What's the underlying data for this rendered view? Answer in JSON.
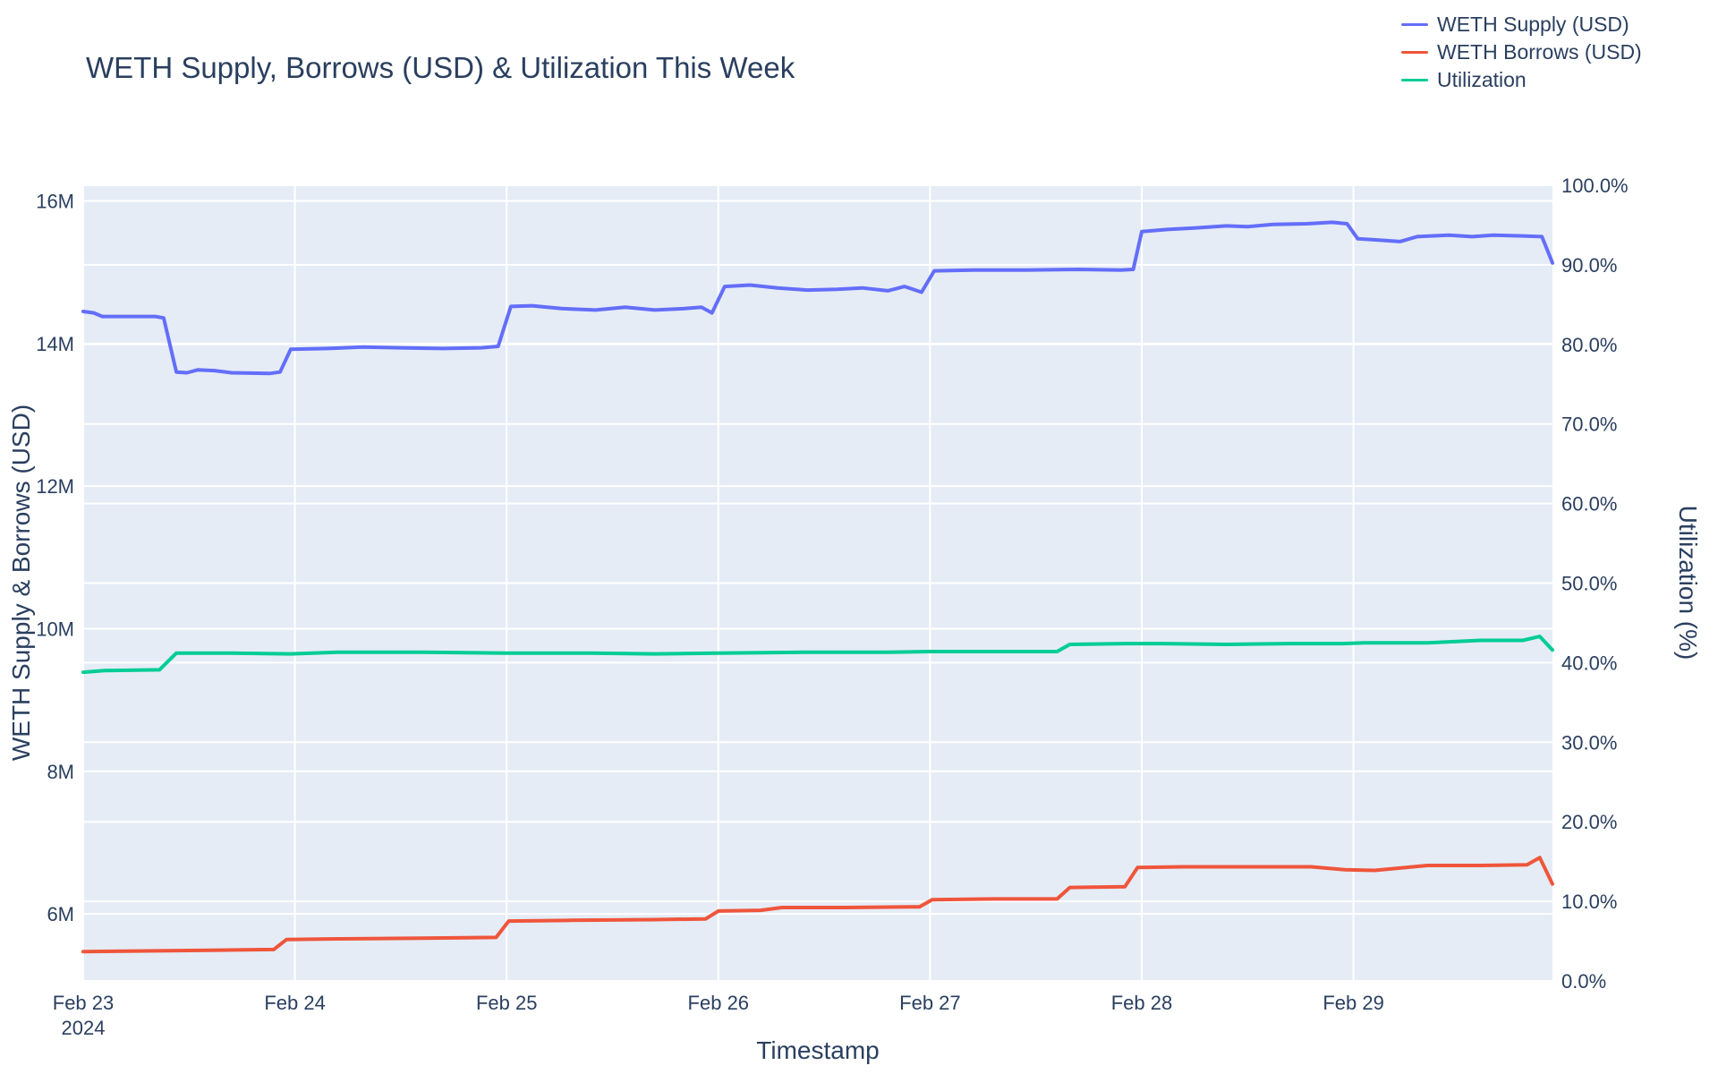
{
  "title": "WETH Supply, Borrows (USD) & Utilization This Week",
  "colors": {
    "page_bg": "#ffffff",
    "plot_bg": "#e5ecf6",
    "grid": "#ffffff",
    "text": "#2a3f5f",
    "supply_line": "#636efa",
    "borrows_line": "#ef553b",
    "utilization_line": "#00cc96"
  },
  "chart_data": {
    "type": "line",
    "title": "WETH Supply, Borrows (USD) & Utilization This Week",
    "xlabel": "Timestamp",
    "ylabel_left": "WETH Supply & Borrows (USD)",
    "ylabel_right": "Utilization (%)",
    "grid": true,
    "legend_position": "top-right",
    "x_unit": "day of February 2024 (decimal = time of day)",
    "x": {
      "min": 23,
      "max": 29.94,
      "ticks": [
        {
          "v": 23,
          "label": "Feb 23",
          "sub": "2024"
        },
        {
          "v": 24,
          "label": "Feb 24"
        },
        {
          "v": 25,
          "label": "Feb 25"
        },
        {
          "v": 26,
          "label": "Feb 26"
        },
        {
          "v": 27,
          "label": "Feb 27"
        },
        {
          "v": 28,
          "label": "Feb 28"
        },
        {
          "v": 29,
          "label": "Feb 29"
        }
      ]
    },
    "y_left": {
      "min": 5.06,
      "max": 16.22,
      "unit": "millions USD",
      "ticks": [
        {
          "v": 6,
          "label": "6M"
        },
        {
          "v": 8,
          "label": "8M"
        },
        {
          "v": 10,
          "label": "10M"
        },
        {
          "v": 12,
          "label": "12M"
        },
        {
          "v": 14,
          "label": "14M"
        },
        {
          "v": 16,
          "label": "16M"
        }
      ]
    },
    "y_right": {
      "min": 0,
      "max": 100,
      "unit": "%",
      "ticks": [
        {
          "v": 0,
          "label": "0.0%"
        },
        {
          "v": 10,
          "label": "10.0%"
        },
        {
          "v": 20,
          "label": "20.0%"
        },
        {
          "v": 30,
          "label": "30.0%"
        },
        {
          "v": 40,
          "label": "40.0%"
        },
        {
          "v": 50,
          "label": "50.0%"
        },
        {
          "v": 60,
          "label": "60.0%"
        },
        {
          "v": 70,
          "label": "70.0%"
        },
        {
          "v": 80,
          "label": "80.0%"
        },
        {
          "v": 90,
          "label": "90.0%"
        },
        {
          "v": 100,
          "label": "100.0%"
        }
      ]
    },
    "series": [
      {
        "name": "WETH Supply (USD)",
        "color": "#636efa",
        "axis": "left",
        "unit": "millions USD",
        "points": [
          [
            23.0,
            14.45
          ],
          [
            23.05,
            14.43
          ],
          [
            23.09,
            14.38
          ],
          [
            23.34,
            14.38
          ],
          [
            23.38,
            14.36
          ],
          [
            23.44,
            13.6
          ],
          [
            23.49,
            13.59
          ],
          [
            23.54,
            13.63
          ],
          [
            23.62,
            13.62
          ],
          [
            23.7,
            13.59
          ],
          [
            23.88,
            13.58
          ],
          [
            23.93,
            13.6
          ],
          [
            23.98,
            13.92
          ],
          [
            24.15,
            13.93
          ],
          [
            24.32,
            13.95
          ],
          [
            24.5,
            13.94
          ],
          [
            24.7,
            13.93
          ],
          [
            24.88,
            13.94
          ],
          [
            24.96,
            13.96
          ],
          [
            25.02,
            14.52
          ],
          [
            25.12,
            14.53
          ],
          [
            25.26,
            14.49
          ],
          [
            25.42,
            14.47
          ],
          [
            25.56,
            14.51
          ],
          [
            25.7,
            14.47
          ],
          [
            25.84,
            14.49
          ],
          [
            25.92,
            14.51
          ],
          [
            25.97,
            14.43
          ],
          [
            26.03,
            14.8
          ],
          [
            26.15,
            14.82
          ],
          [
            26.28,
            14.78
          ],
          [
            26.42,
            14.75
          ],
          [
            26.56,
            14.76
          ],
          [
            26.68,
            14.78
          ],
          [
            26.8,
            14.74
          ],
          [
            26.88,
            14.8
          ],
          [
            26.96,
            14.72
          ],
          [
            27.02,
            15.02
          ],
          [
            27.2,
            15.03
          ],
          [
            27.45,
            15.03
          ],
          [
            27.7,
            15.04
          ],
          [
            27.9,
            15.03
          ],
          [
            27.96,
            15.04
          ],
          [
            28.0,
            15.57
          ],
          [
            28.12,
            15.6
          ],
          [
            28.25,
            15.62
          ],
          [
            28.4,
            15.65
          ],
          [
            28.5,
            15.64
          ],
          [
            28.62,
            15.67
          ],
          [
            28.78,
            15.68
          ],
          [
            28.9,
            15.7
          ],
          [
            28.97,
            15.68
          ],
          [
            29.02,
            15.47
          ],
          [
            29.12,
            15.45
          ],
          [
            29.22,
            15.43
          ],
          [
            29.3,
            15.5
          ],
          [
            29.45,
            15.52
          ],
          [
            29.56,
            15.5
          ],
          [
            29.66,
            15.52
          ],
          [
            29.8,
            15.51
          ],
          [
            29.89,
            15.5
          ],
          [
            29.94,
            15.13
          ]
        ]
      },
      {
        "name": "WETH Borrows (USD)",
        "color": "#ef553b",
        "axis": "left",
        "unit": "millions USD",
        "points": [
          [
            23.0,
            5.47
          ],
          [
            23.3,
            5.48
          ],
          [
            23.6,
            5.49
          ],
          [
            23.9,
            5.5
          ],
          [
            23.96,
            5.64
          ],
          [
            24.2,
            5.65
          ],
          [
            24.6,
            5.66
          ],
          [
            24.95,
            5.67
          ],
          [
            25.01,
            5.9
          ],
          [
            25.3,
            5.91
          ],
          [
            25.7,
            5.92
          ],
          [
            25.94,
            5.93
          ],
          [
            26.0,
            6.04
          ],
          [
            26.2,
            6.05
          ],
          [
            26.3,
            6.09
          ],
          [
            26.6,
            6.09
          ],
          [
            26.95,
            6.1
          ],
          [
            27.01,
            6.2
          ],
          [
            27.3,
            6.21
          ],
          [
            27.6,
            6.21
          ],
          [
            27.66,
            6.37
          ],
          [
            27.92,
            6.38
          ],
          [
            27.98,
            6.65
          ],
          [
            28.2,
            6.66
          ],
          [
            28.5,
            6.66
          ],
          [
            28.8,
            6.66
          ],
          [
            28.96,
            6.62
          ],
          [
            29.1,
            6.61
          ],
          [
            29.35,
            6.68
          ],
          [
            29.6,
            6.68
          ],
          [
            29.82,
            6.69
          ],
          [
            29.88,
            6.79
          ],
          [
            29.94,
            6.42
          ]
        ]
      },
      {
        "name": "Utilization",
        "color": "#00cc96",
        "axis": "right",
        "unit": "%",
        "points": [
          [
            23.0,
            38.8
          ],
          [
            23.1,
            39.0
          ],
          [
            23.36,
            39.1
          ],
          [
            23.44,
            41.2
          ],
          [
            23.7,
            41.2
          ],
          [
            23.98,
            41.1
          ],
          [
            24.2,
            41.3
          ],
          [
            24.6,
            41.3
          ],
          [
            25.0,
            41.2
          ],
          [
            25.4,
            41.2
          ],
          [
            25.7,
            41.1
          ],
          [
            26.0,
            41.2
          ],
          [
            26.4,
            41.3
          ],
          [
            26.8,
            41.3
          ],
          [
            27.0,
            41.4
          ],
          [
            27.35,
            41.4
          ],
          [
            27.6,
            41.4
          ],
          [
            27.66,
            42.3
          ],
          [
            27.92,
            42.4
          ],
          [
            28.1,
            42.4
          ],
          [
            28.4,
            42.3
          ],
          [
            28.7,
            42.4
          ],
          [
            28.95,
            42.4
          ],
          [
            29.05,
            42.5
          ],
          [
            29.35,
            42.5
          ],
          [
            29.6,
            42.8
          ],
          [
            29.8,
            42.8
          ],
          [
            29.88,
            43.3
          ],
          [
            29.94,
            41.6
          ]
        ]
      }
    ]
  }
}
